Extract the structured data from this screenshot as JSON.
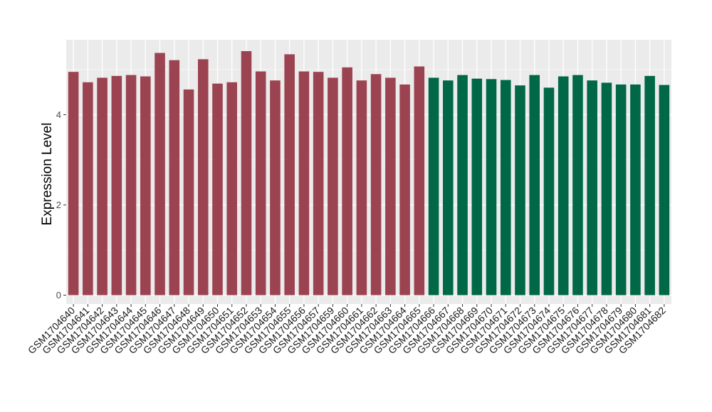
{
  "chart_data": {
    "type": "bar",
    "title": "",
    "xlabel": "",
    "ylabel": "Expression Level",
    "ylim": [
      0,
      5.6
    ],
    "yticks": [
      0,
      2,
      4
    ],
    "grid": true,
    "colors": {
      "group1": "#9B4350",
      "group2": "#006847",
      "panel": "#EBEBEB",
      "grid": "#FFFFFF"
    },
    "categories": [
      "GSM1704640",
      "GSM1704641",
      "GSM1704642",
      "GSM1704643",
      "GSM1704644",
      "GSM1704645",
      "GSM1704646",
      "GSM1704647",
      "GSM1704648",
      "GSM1704649",
      "GSM1704650",
      "GSM1704651",
      "GSM1704652",
      "GSM1704653",
      "GSM1704654",
      "GSM1704655",
      "GSM1704656",
      "GSM1704657",
      "GSM1704659",
      "GSM1704660",
      "GSM1704661",
      "GSM1704662",
      "GSM1704663",
      "GSM1704664",
      "GSM1704665",
      "GSM1704666",
      "GSM1704667",
      "GSM1704668",
      "GSM1704669",
      "GSM1704670",
      "GSM1704671",
      "GSM1704672",
      "GSM1704673",
      "GSM1704674",
      "GSM1704675",
      "GSM1704676",
      "GSM1704677",
      "GSM1704678",
      "GSM1704679",
      "GSM1704680",
      "GSM1704681",
      "GSM1704682"
    ],
    "values": [
      4.95,
      4.72,
      4.82,
      4.86,
      4.88,
      4.85,
      5.37,
      5.21,
      4.56,
      5.23,
      4.69,
      4.72,
      5.41,
      4.96,
      4.76,
      5.34,
      4.96,
      4.95,
      4.82,
      5.05,
      4.76,
      4.9,
      4.82,
      4.67,
      5.07,
      4.82,
      4.76,
      4.88,
      4.8,
      4.79,
      4.77,
      4.65,
      4.88,
      4.6,
      4.85,
      4.88,
      4.76,
      4.71,
      4.67,
      4.67,
      4.86,
      4.66
    ],
    "groups": [
      1,
      1,
      1,
      1,
      1,
      1,
      1,
      1,
      1,
      1,
      1,
      1,
      1,
      1,
      1,
      1,
      1,
      1,
      1,
      1,
      1,
      1,
      1,
      1,
      1,
      2,
      2,
      2,
      2,
      2,
      2,
      2,
      2,
      2,
      2,
      2,
      2,
      2,
      2,
      2,
      2,
      2
    ]
  }
}
